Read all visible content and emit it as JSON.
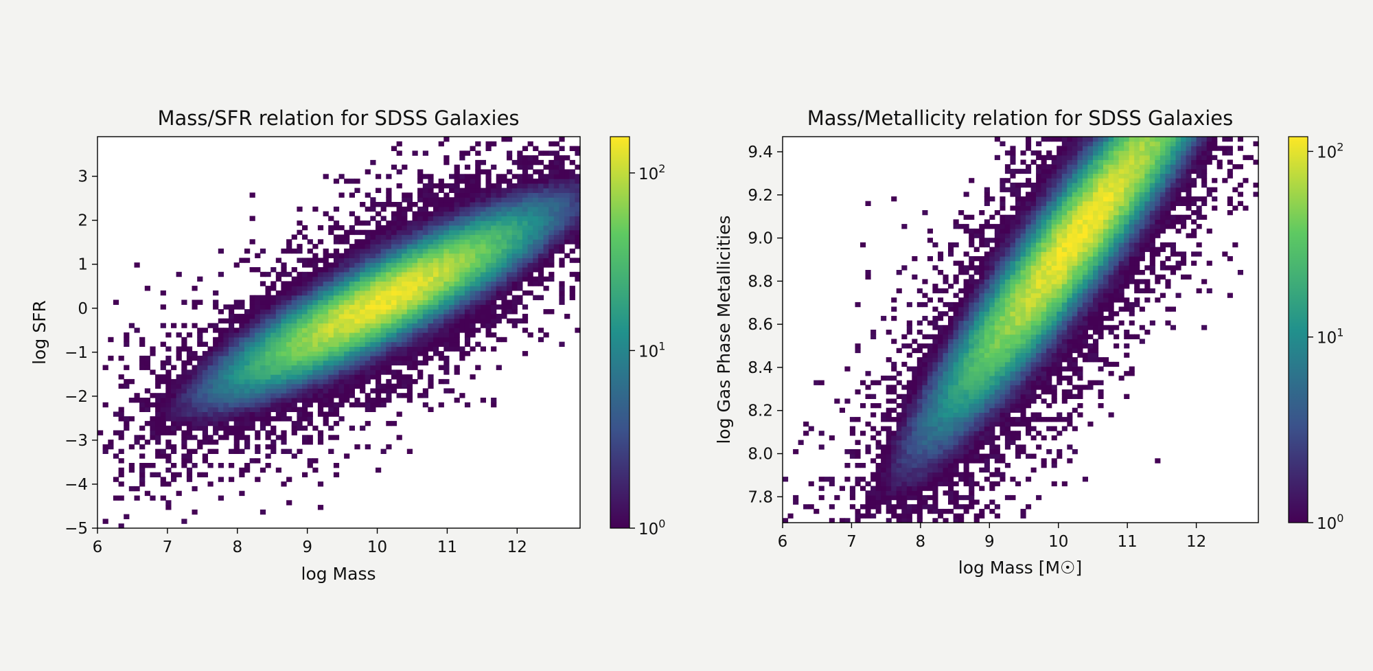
{
  "colors": {
    "background": "#f3f3f1",
    "viridis_stops": [
      "#440154",
      "#3b528b",
      "#21918c",
      "#5ec962",
      "#fde725"
    ]
  },
  "chart_data": [
    {
      "type": "heatmap",
      "title": "Mass/SFR relation for SDSS Galaxies",
      "xlabel": "log Mass",
      "ylabel": "log SFR",
      "xlim": [
        6,
        12.9
      ],
      "ylim": [
        -5,
        3.9
      ],
      "xticks": [
        "6",
        "7",
        "8",
        "9",
        "10",
        "11",
        "12"
      ],
      "yticks": [
        "−5",
        "−4",
        "−3",
        "−2",
        "−1",
        "0",
        "1",
        "2",
        "3"
      ],
      "colorbar": {
        "scale": "log",
        "range": [
          1,
          160
        ],
        "ticks": [
          {
            "base": "10",
            "exp": "0",
            "value": 1
          },
          {
            "base": "10",
            "exp": "1",
            "value": 10
          },
          {
            "base": "10",
            "exp": "2",
            "value": 100
          }
        ]
      },
      "colormap": "viridis",
      "density_ridge": {
        "slope": 0.8,
        "intercept": -7.9,
        "x_peak": 10.1,
        "y_peak": 0.2,
        "x_spread": 0.7,
        "y_spread": 0.38,
        "peak_count": 140
      },
      "grid": false
    },
    {
      "type": "heatmap",
      "title": "Mass/Metallicity relation for SDSS Galaxies",
      "xlabel": "log Mass [M☉]",
      "ylabel": "log Gas Phase Metallicities",
      "xlim": [
        6,
        12.9
      ],
      "ylim": [
        7.68,
        9.47
      ],
      "xticks": [
        "6",
        "7",
        "8",
        "9",
        "10",
        "11",
        "12"
      ],
      "yticks": [
        "7.8",
        "8.0",
        "8.2",
        "8.4",
        "8.6",
        "8.8",
        "9.0",
        "9.2",
        "9.4"
      ],
      "colorbar": {
        "scale": "log",
        "range": [
          1,
          120
        ],
        "ticks": [
          {
            "base": "10",
            "exp": "0",
            "value": 1
          },
          {
            "base": "10",
            "exp": "1",
            "value": 10
          },
          {
            "base": "10",
            "exp": "2",
            "value": 100
          }
        ]
      },
      "colormap": "viridis",
      "density_ridge": {
        "slope": 0.4,
        "intercept": 4.9,
        "x_peak": 10.3,
        "y_peak": 9.0,
        "x_spread": 0.65,
        "y_spread": 0.12,
        "peak_count": 110
      },
      "grid": false
    }
  ]
}
